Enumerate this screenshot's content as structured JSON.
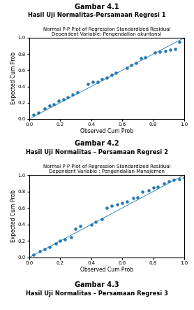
{
  "chart_data": [
    {
      "type": "scatter",
      "annotations": [
        "Gambar 4.1",
        "Hasil Uji Normalitas-Persamaan Regresi 1"
      ],
      "title": "Normal P-P Plot of Regression Standardized Residual",
      "subtitle": "Dependent Variable: Pengendalian akuntansi",
      "x_label": "Observed Cum Prob",
      "y_label": "Expected Cum Prob",
      "x": [
        0.03,
        0.06,
        0.1,
        0.13,
        0.16,
        0.19,
        0.22,
        0.25,
        0.28,
        0.31,
        0.38,
        0.41,
        0.44,
        0.47,
        0.5,
        0.53,
        0.56,
        0.63,
        0.66,
        0.69,
        0.72,
        0.75,
        0.81,
        0.84,
        0.88,
        0.91,
        0.94,
        0.97,
        1.0
      ],
      "values": [
        0.05,
        0.08,
        0.13,
        0.16,
        0.18,
        0.22,
        0.24,
        0.27,
        0.3,
        0.33,
        0.43,
        0.46,
        0.46,
        0.49,
        0.51,
        0.54,
        0.57,
        0.63,
        0.66,
        0.69,
        0.75,
        0.76,
        0.82,
        0.83,
        0.84,
        0.85,
        0.86,
        0.95,
        1.0
      ],
      "reference_line": {
        "x": [
          0,
          1
        ],
        "y": [
          0,
          1
        ]
      },
      "marker": "o",
      "xlim": [
        0.0,
        1.0
      ],
      "ylim": [
        0.0,
        1.0
      ],
      "xticks": [
        0.0,
        0.2,
        0.4,
        0.6,
        0.8,
        1.0
      ],
      "yticks": [
        0.0,
        0.2,
        0.4,
        0.6,
        0.8,
        1.0
      ],
      "grid": false
    },
    {
      "type": "scatter",
      "annotations": [
        "Gambar 4.2",
        "Hasil Uji Normalitas – Persamaan Regresi 2"
      ],
      "title": "Normal P-P Plot of Regression Standardized Residual",
      "subtitle": "Dependent Variable : Pengendalian Manajemen",
      "x_label": "Observed Cum Prob",
      "y_label": "Expected Cum Prob",
      "x": [
        0.03,
        0.07,
        0.1,
        0.13,
        0.17,
        0.2,
        0.23,
        0.27,
        0.3,
        0.33,
        0.4,
        0.43,
        0.47,
        0.5,
        0.53,
        0.57,
        0.6,
        0.63,
        0.67,
        0.7,
        0.73,
        0.77,
        0.8,
        0.83,
        0.87,
        0.9,
        0.93,
        0.97,
        1.0
      ],
      "values": [
        0.03,
        0.08,
        0.1,
        0.13,
        0.17,
        0.2,
        0.22,
        0.25,
        0.35,
        0.38,
        0.4,
        0.43,
        0.47,
        0.6,
        0.63,
        0.64,
        0.66,
        0.68,
        0.72,
        0.73,
        0.8,
        0.81,
        0.85,
        0.86,
        0.9,
        0.92,
        0.94,
        0.95,
        0.97
      ],
      "reference_line": {
        "x": [
          0,
          1
        ],
        "y": [
          0,
          1
        ]
      },
      "marker": "o",
      "xlim": [
        0.0,
        1.0
      ],
      "ylim": [
        0.0,
        1.0
      ],
      "xticks": [
        0.0,
        0.2,
        0.4,
        0.6,
        0.8,
        1.0
      ],
      "yticks": [
        0.0,
        0.2,
        0.4,
        0.6,
        0.8,
        1.0
      ],
      "grid": false
    }
  ],
  "annotations": [
    "Gambar 4.3",
    "Hasil Uji Normalitas – Persamaan Regresi 3"
  ]
}
